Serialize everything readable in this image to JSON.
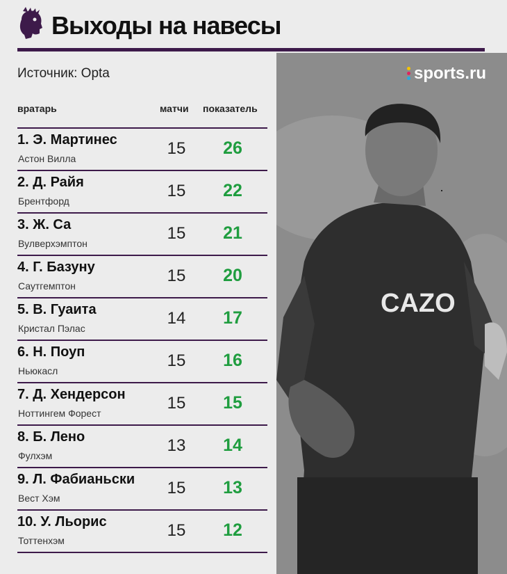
{
  "header": {
    "title": "Выходы на навесы",
    "source": "Источник: Opta"
  },
  "brand": {
    "name": "sports.ru"
  },
  "columns": {
    "keeper": "вратарь",
    "matches": "матчи",
    "score": "показатель"
  },
  "colors": {
    "accent": "#3d1a4a",
    "score": "#1f9d3f"
  },
  "rows": [
    {
      "name": "1. Э. Мартинес",
      "club": "Астон Вилла",
      "matches": "15",
      "score": "26"
    },
    {
      "name": "2. Д. Райя",
      "club": "Брентфорд",
      "matches": "15",
      "score": "22"
    },
    {
      "name": "3. Ж. Са",
      "club": "Вулверхэмптон",
      "matches": "15",
      "score": "21"
    },
    {
      "name": "4. Г. Базуну",
      "club": "Саутгемптон",
      "matches": "15",
      "score": "20"
    },
    {
      "name": "5. В. Гуаита",
      "club": "Кристал Пэлас",
      "matches": "14",
      "score": "17"
    },
    {
      "name": "6. Н. Поуп",
      "club": "Ньюкасл",
      "matches": "15",
      "score": "16"
    },
    {
      "name": "7. Д. Хендерсон",
      "club": "Ноттингем Форест",
      "matches": "15",
      "score": "15"
    },
    {
      "name": "8. Б. Лено",
      "club": "Фулхэм",
      "matches": "13",
      "score": "14"
    },
    {
      "name": "9. Л. Фабианьски",
      "club": "Вест Хэм",
      "matches": "15",
      "score": "13"
    },
    {
      "name": "10. У. Льорис",
      "club": "Тоттенхэм",
      "matches": "15",
      "score": "12"
    }
  ]
}
